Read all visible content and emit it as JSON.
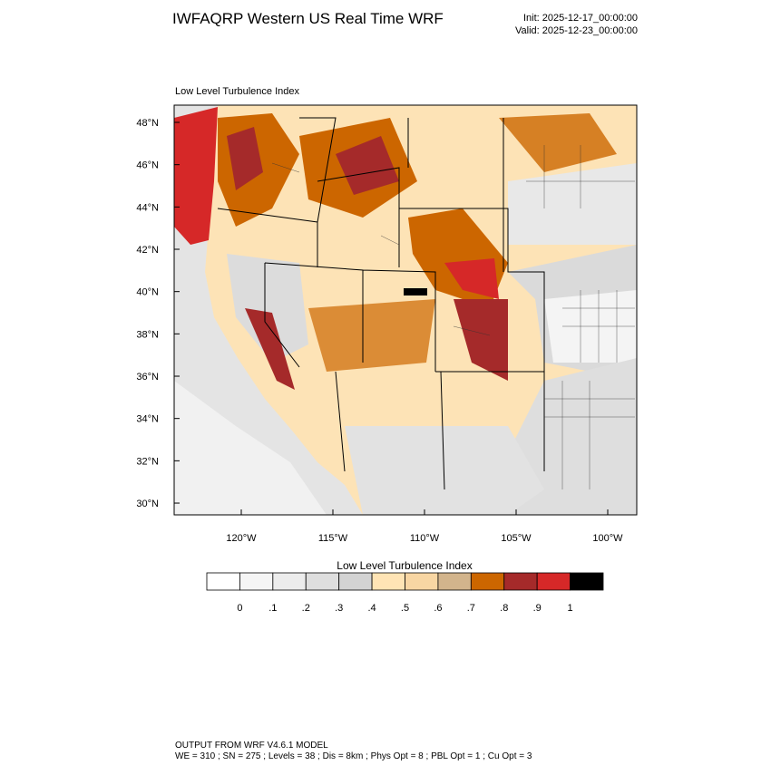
{
  "header": {
    "title": "IWFAQRP Western US Real Time WRF",
    "init": "Init: 2025-12-17_00:00:00",
    "valid": "Valid: 2025-12-23_00:00:00"
  },
  "map": {
    "title": "Low Level Turbulence Index",
    "lat_labels": [
      "48°N",
      "46°N",
      "44°N",
      "42°N",
      "40°N",
      "38°N",
      "36°N",
      "34°N",
      "32°N",
      "30°N"
    ],
    "lon_labels": [
      "120°W",
      "115°W",
      "110°W",
      "105°W",
      "100°W"
    ]
  },
  "legend": {
    "title": "Low Level Turbulence Index",
    "labels": [
      "0",
      ".1",
      ".2",
      ".3",
      ".4",
      ".5",
      ".6",
      ".7",
      ".8",
      ".9",
      "1"
    ],
    "colors": [
      "#ffffff",
      "#f5f5f5",
      "#ececec",
      "#dedede",
      "#d3d3d3",
      "#ffe4b5",
      "#f8d6a3",
      "#d2b48c",
      "#cc6600",
      "#a52a2a",
      "#d62828",
      "#000000"
    ]
  },
  "footer": {
    "lines": [
      "OUTPUT FROM WRF V4.6.1 MODEL",
      "WE = 310 ; SN = 275 ; Levels = 38 ; Dis = 8km ; Phys Opt = 8 ; PBL Opt = 1 ; Cu Opt = 3"
    ]
  }
}
